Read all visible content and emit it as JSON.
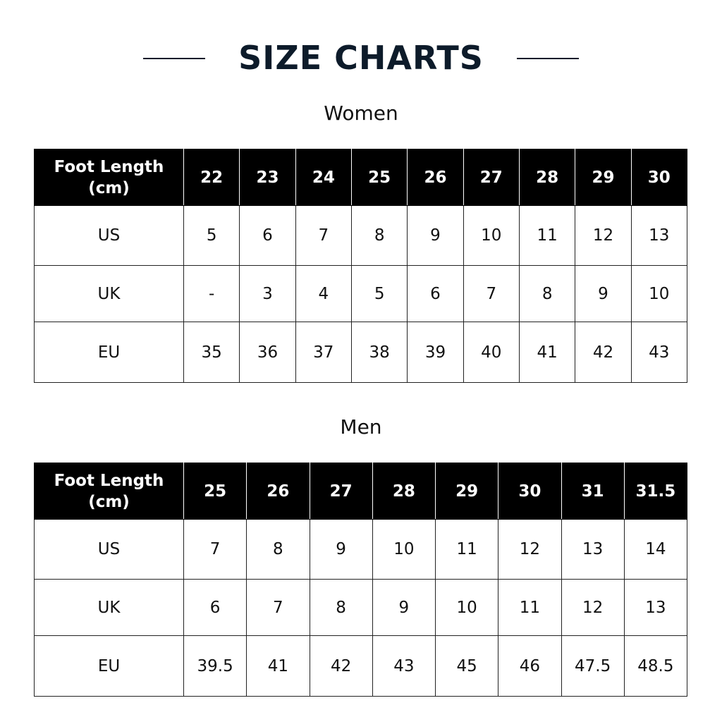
{
  "title": "SIZE CHARTS",
  "women": {
    "heading": "Women",
    "header_label": "Foot Length (cm)",
    "columns": [
      "22",
      "23",
      "24",
      "25",
      "26",
      "27",
      "28",
      "29",
      "30"
    ],
    "rows": [
      {
        "label": "US",
        "values": [
          "5",
          "6",
          "7",
          "8",
          "9",
          "10",
          "11",
          "12",
          "13"
        ]
      },
      {
        "label": "UK",
        "values": [
          "-",
          "3",
          "4",
          "5",
          "6",
          "7",
          "8",
          "9",
          "10"
        ]
      },
      {
        "label": "EU",
        "values": [
          "35",
          "36",
          "37",
          "38",
          "39",
          "40",
          "41",
          "42",
          "43"
        ]
      }
    ]
  },
  "men": {
    "heading": "Men",
    "header_label": "Foot Length (cm)",
    "columns": [
      "25",
      "26",
      "27",
      "28",
      "29",
      "30",
      "31",
      "31.5"
    ],
    "rows": [
      {
        "label": "US",
        "values": [
          "7",
          "8",
          "9",
          "10",
          "11",
          "12",
          "13",
          "14"
        ]
      },
      {
        "label": "UK",
        "values": [
          "6",
          "7",
          "8",
          "9",
          "10",
          "11",
          "12",
          "13"
        ]
      },
      {
        "label": "EU",
        "values": [
          "39.5",
          "41",
          "42",
          "43",
          "45",
          "46",
          "47.5",
          "48.5"
        ]
      }
    ]
  },
  "colors": {
    "title": "#0d1b2a",
    "header_bg": "#000000",
    "header_text": "#ffffff"
  }
}
